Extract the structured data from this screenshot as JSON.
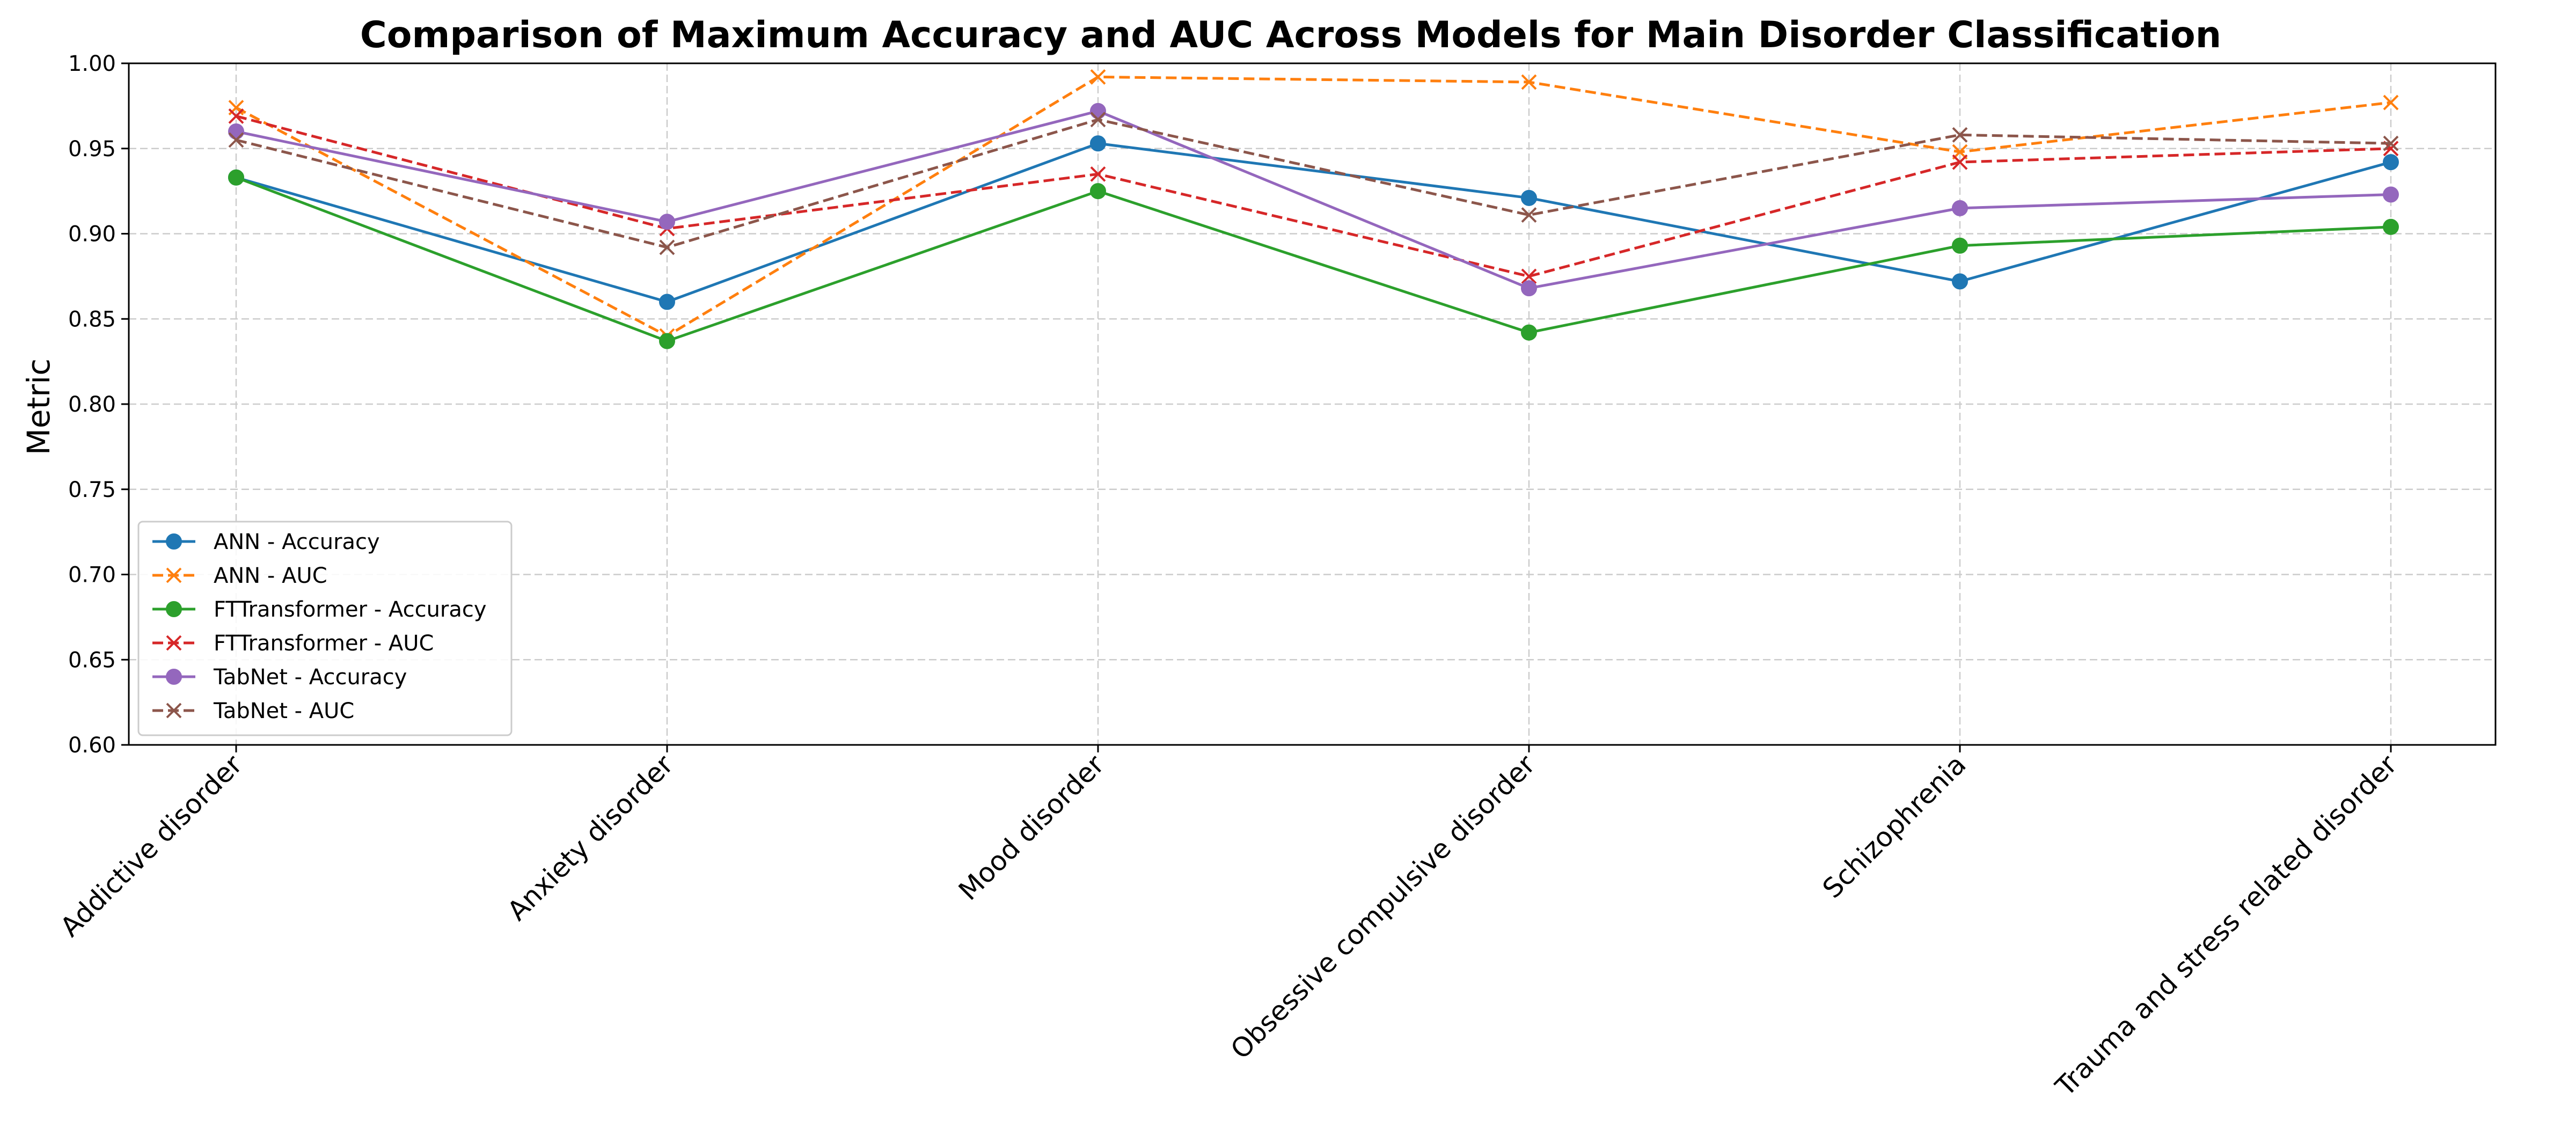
{
  "chart_data": {
    "type": "line",
    "title": "Comparison of Maximum Accuracy and AUC Across Models for Main Disorder Classification",
    "xlabel": "",
    "ylabel": "Metric",
    "ylim": [
      0.6,
      1.0
    ],
    "yticks": [
      "0.60",
      "0.65",
      "0.70",
      "0.75",
      "0.80",
      "0.85",
      "0.90",
      "0.95",
      "1.00"
    ],
    "grid": true,
    "legend_position": "lower-left",
    "categories": [
      "Addictive disorder",
      "Anxiety disorder",
      "Mood disorder",
      "Obsessive compulsive disorder",
      "Schizophrenia",
      "Trauma and stress related disorder"
    ],
    "series": [
      {
        "name": "ANN - Accuracy",
        "color": "#1f77b4",
        "style": "solid",
        "marker": "circle",
        "values": [
          0.933,
          0.86,
          0.953,
          0.921,
          0.872,
          0.942
        ]
      },
      {
        "name": "ANN - AUC",
        "color": "#ff7f0e",
        "style": "dashed",
        "marker": "x",
        "values": [
          0.974,
          0.84,
          0.992,
          0.989,
          0.948,
          0.977
        ]
      },
      {
        "name": "FTTransformer - Accuracy",
        "color": "#2ca02c",
        "style": "solid",
        "marker": "circle",
        "values": [
          0.933,
          0.837,
          0.925,
          0.842,
          0.893,
          0.904
        ]
      },
      {
        "name": "FTTransformer - AUC",
        "color": "#d62728",
        "style": "dashed",
        "marker": "x",
        "values": [
          0.969,
          0.903,
          0.935,
          0.875,
          0.942,
          0.95
        ]
      },
      {
        "name": "TabNet - Accuracy",
        "color": "#9467bd",
        "style": "solid",
        "marker": "circle",
        "values": [
          0.96,
          0.907,
          0.972,
          0.868,
          0.915,
          0.923
        ]
      },
      {
        "name": "TabNet - AUC",
        "color": "#8c564b",
        "style": "dashed",
        "marker": "x",
        "values": [
          0.955,
          0.892,
          0.967,
          0.911,
          0.958,
          0.953
        ]
      }
    ]
  }
}
